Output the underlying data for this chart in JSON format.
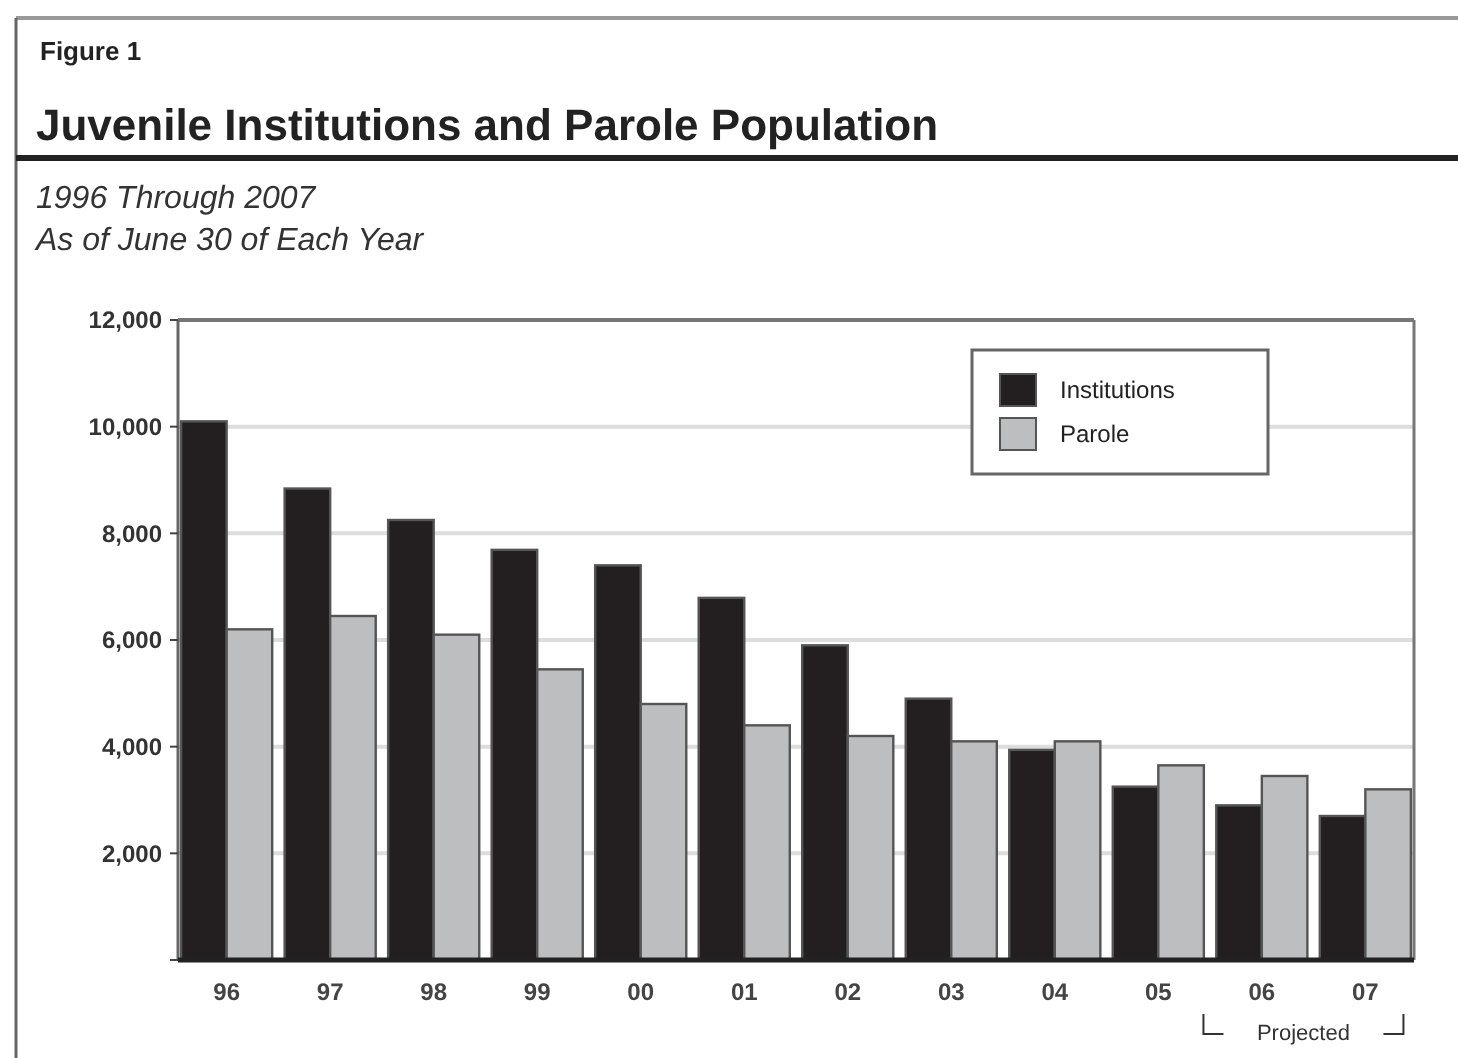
{
  "chart_data": {
    "type": "bar",
    "title": "Juvenile Institutions and Parole Population",
    "subtitle": "1996 Through 2007\nAs of June 30 of Each Year",
    "annotations": [
      "Figure 1",
      "Projected"
    ],
    "categories": [
      "96",
      "97",
      "98",
      "99",
      "00",
      "01",
      "02",
      "03",
      "04",
      "05",
      "06",
      "07"
    ],
    "series": [
      {
        "name": "Institutions",
        "color": "#231f20",
        "values": [
          10100,
          8840,
          8250,
          7690,
          7400,
          6790,
          5900,
          4900,
          3940,
          3250,
          2900,
          2700
        ]
      },
      {
        "name": "Parole",
        "color": "#bcbec0",
        "values": [
          6200,
          6450,
          6100,
          5450,
          4800,
          4400,
          4200,
          4100,
          4100,
          3650,
          3450,
          3200
        ]
      }
    ],
    "ylim": [
      0,
      12000
    ],
    "yticks": [
      {
        "value": 0,
        "label": null
      },
      {
        "value": 2000,
        "label": "2,000"
      },
      {
        "value": 4000,
        "label": "4,000"
      },
      {
        "value": 6000,
        "label": "6,000"
      },
      {
        "value": 8000,
        "label": "8,000"
      },
      {
        "value": 10000,
        "label": "10,000"
      },
      {
        "value": 12000,
        "label": "12,000"
      }
    ],
    "grid": "y",
    "legend": "top right"
  }
}
